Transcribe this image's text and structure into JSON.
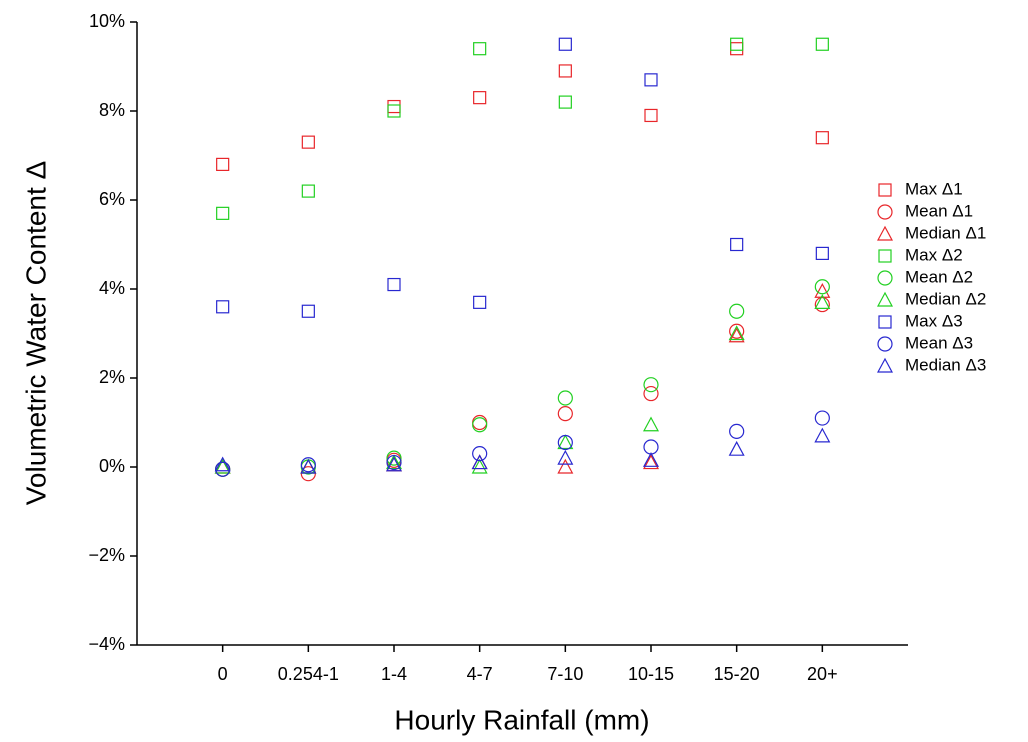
{
  "chart_data": {
    "type": "scatter",
    "x_label": "Hourly Rainfall (mm)",
    "y_label": "Volumetric Water Content Δ",
    "categories": [
      "0",
      "0.254-1",
      "1-4",
      "4-7",
      "7-10",
      "10-15",
      "15-20",
      "20+"
    ],
    "ylim": [
      -4,
      10
    ],
    "yticks": [
      {
        "value": -4,
        "label": "−4%"
      },
      {
        "value": -2,
        "label": "−2%"
      },
      {
        "value": 0,
        "label": "0%"
      },
      {
        "value": 2,
        "label": "2%"
      },
      {
        "value": 4,
        "label": "4%"
      },
      {
        "value": 6,
        "label": "6%"
      },
      {
        "value": 8,
        "label": "8%"
      },
      {
        "value": 10,
        "label": "10%"
      }
    ],
    "series": [
      {
        "name": "Max Δ1",
        "color": "#e8262a",
        "marker": "square",
        "values": [
          6.8,
          7.3,
          8.1,
          8.3,
          8.9,
          7.9,
          9.4,
          7.4
        ]
      },
      {
        "name": "Mean Δ1",
        "color": "#e8262a",
        "marker": "circle",
        "values": [
          -0.05,
          -0.15,
          0.15,
          1.0,
          1.2,
          1.65,
          3.05,
          3.65
        ]
      },
      {
        "name": "Median Δ1",
        "color": "#e8262a",
        "marker": "triangle",
        "values": [
          0,
          0,
          0.05,
          0.1,
          0,
          0.1,
          2.95,
          3.95
        ]
      },
      {
        "name": "Max Δ2",
        "color": "#22d022",
        "marker": "square",
        "values": [
          5.7,
          6.2,
          8.0,
          9.4,
          8.2,
          null,
          9.5,
          9.5
        ]
      },
      {
        "name": "Mean Δ2",
        "color": "#22d022",
        "marker": "circle",
        "values": [
          -0.05,
          0,
          0.2,
          0.95,
          1.55,
          1.85,
          3.5,
          4.05
        ]
      },
      {
        "name": "Median Δ2",
        "color": "#22d022",
        "marker": "triangle",
        "values": [
          0,
          0,
          0.1,
          0,
          0.55,
          0.95,
          3.0,
          3.7
        ]
      },
      {
        "name": "Max Δ3",
        "color": "#2828d0",
        "marker": "square",
        "values": [
          3.6,
          3.5,
          4.1,
          3.7,
          9.5,
          8.7,
          5.0,
          4.8
        ]
      },
      {
        "name": "Mean Δ3",
        "color": "#2828d0",
        "marker": "circle",
        "values": [
          -0.05,
          0.05,
          0.1,
          0.3,
          0.55,
          0.45,
          0.8,
          1.1
        ]
      },
      {
        "name": "Median Δ3",
        "color": "#2828d0",
        "marker": "triangle",
        "values": [
          0.05,
          0,
          0.05,
          0.1,
          0.2,
          0.15,
          0.4,
          0.7
        ]
      }
    ]
  }
}
